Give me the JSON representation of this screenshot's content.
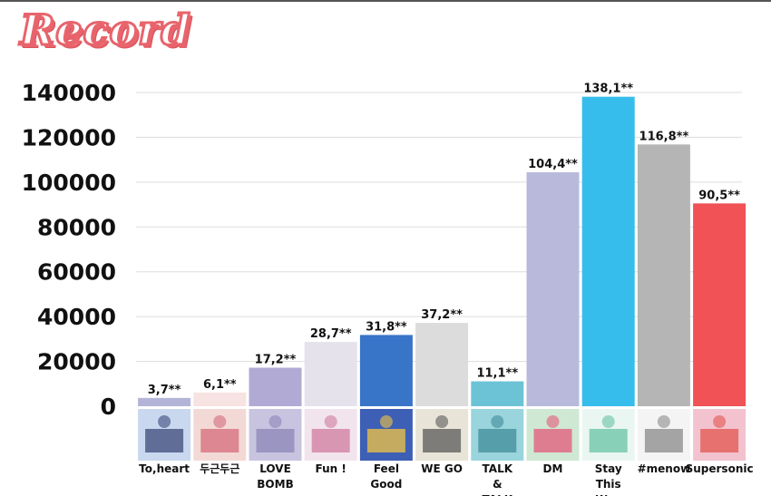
{
  "page": {
    "title": "Record"
  },
  "chart_data": {
    "type": "bar",
    "title": "Record",
    "xlabel": "",
    "ylabel": "",
    "ylim": [
      0,
      140000
    ],
    "yticks": [
      0,
      20000,
      40000,
      60000,
      80000,
      100000,
      120000,
      140000
    ],
    "ytick_labels": [
      "0",
      "20000",
      "40000",
      "60000",
      "80000",
      "100000",
      "120000",
      "140000"
    ],
    "grid": true,
    "categories": [
      [
        "To,heart"
      ],
      [
        "두근두근"
      ],
      [
        "LOVE",
        "BOMB"
      ],
      [
        "Fun !"
      ],
      [
        "Feel",
        "Good"
      ],
      [
        "WE GO"
      ],
      [
        "TALK",
        "&",
        "TALK"
      ],
      [
        "DM"
      ],
      [
        "Stay",
        "This",
        "Way"
      ],
      [
        "#menow"
      ],
      [
        "Supersonic"
      ]
    ],
    "values": [
      3700,
      6100,
      17200,
      28700,
      31800,
      37200,
      11100,
      104400,
      138100,
      116800,
      90500
    ],
    "data_labels": [
      "3,7**",
      "6,1**",
      "17,2**",
      "28,7**",
      "31,8**",
      "37,2**",
      "11,1**",
      "104,4**",
      "138,1**",
      "116,8**",
      "90,5**"
    ],
    "colors": [
      "#b3b4d8",
      "#f7e3e1",
      "#b1aad4",
      "#e6e2ec",
      "#3874c8",
      "#dcdcdc",
      "#6cc3d6",
      "#b9b9dc",
      "#36bdec",
      "#b5b5b5",
      "#f05256"
    ],
    "album_thumb_colors": [
      [
        "#c9d8ef",
        "#3c4a7a"
      ],
      [
        "#f3d9d6",
        "#d46b7a"
      ],
      [
        "#c8c4e0",
        "#8c86b8"
      ],
      [
        "#f2e4ec",
        "#d07ca0"
      ],
      [
        "#3d5fb5",
        "#f2c443"
      ],
      [
        "#e8e4d8",
        "#5a5a5a"
      ],
      [
        "#9ad4dc",
        "#3f8c9a"
      ],
      [
        "#cfe8d4",
        "#e45a7a"
      ],
      [
        "#eaf6f2",
        "#67c3a4"
      ],
      [
        "#f4f4f4",
        "#8a8a8a"
      ],
      [
        "#f3c2cf",
        "#e2554f"
      ]
    ]
  }
}
